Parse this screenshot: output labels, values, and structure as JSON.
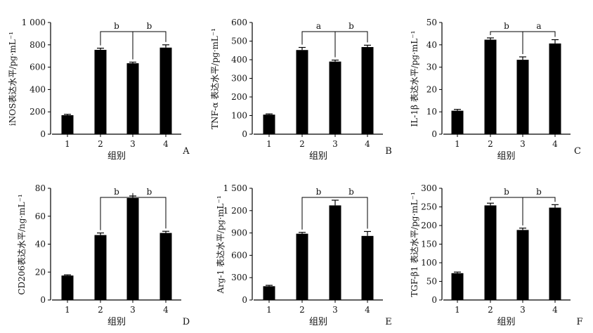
{
  "figure": {
    "colors": {
      "bar": "#000000",
      "axis": "#000000",
      "background": "#ffffff"
    }
  },
  "chart_data": [
    {
      "type": "bar",
      "panel_label": "A",
      "categories": [
        "1",
        "2",
        "3",
        "4"
      ],
      "values": [
        170,
        755,
        635,
        775
      ],
      "errors": [
        8,
        15,
        10,
        25
      ],
      "xlabel": "组别",
      "ylabel": "iNOS表达水平/pg·mL⁻¹",
      "ylim": [
        0,
        1000
      ],
      "yticks": [
        0,
        200,
        400,
        600,
        800,
        1000
      ],
      "ytick_labels": [
        "0",
        "200",
        "400",
        "600",
        "800",
        "1 000"
      ],
      "legend": "none",
      "grid": false,
      "significance": [
        {
          "from": "2",
          "to": "3",
          "label": "b"
        },
        {
          "from": "3",
          "to": "4",
          "label": "b"
        }
      ]
    },
    {
      "type": "bar",
      "panel_label": "B",
      "categories": [
        "1",
        "2",
        "3",
        "4"
      ],
      "values": [
        105,
        452,
        390,
        468
      ],
      "errors": [
        4,
        14,
        8,
        10
      ],
      "xlabel": "组别",
      "ylabel": "TNF-α 表达水平/pg·mL⁻¹",
      "ylim": [
        0,
        600
      ],
      "yticks": [
        0,
        100,
        200,
        300,
        400,
        500,
        600
      ],
      "ytick_labels": [
        "0",
        "100",
        "200",
        "300",
        "400",
        "500",
        "600"
      ],
      "legend": "none",
      "grid": false,
      "significance": [
        {
          "from": "2",
          "to": "3",
          "label": "a"
        },
        {
          "from": "3",
          "to": "4",
          "label": "b"
        }
      ]
    },
    {
      "type": "bar",
      "panel_label": "C",
      "categories": [
        "1",
        "2",
        "3",
        "4"
      ],
      "values": [
        10.5,
        42.3,
        33.3,
        40.6
      ],
      "errors": [
        0.6,
        0.8,
        1.3,
        1.7
      ],
      "xlabel": "组别",
      "ylabel": "IL-1β 表达水平/pg·mL⁻¹",
      "ylim": [
        0,
        50
      ],
      "yticks": [
        0,
        10,
        20,
        30,
        40,
        50
      ],
      "ytick_labels": [
        "0",
        "10",
        "20",
        "30",
        "40",
        "50"
      ],
      "legend": "none",
      "grid": false,
      "significance": [
        {
          "from": "2",
          "to": "3",
          "label": "b"
        },
        {
          "from": "3",
          "to": "4",
          "label": "a"
        }
      ]
    },
    {
      "type": "bar",
      "panel_label": "D",
      "categories": [
        "1",
        "2",
        "3",
        "4"
      ],
      "values": [
        17.5,
        46.5,
        73,
        48
      ],
      "errors": [
        0.5,
        1.5,
        1.5,
        1.2
      ],
      "xlabel": "组别",
      "ylabel": "CD206表达水平/ng·mL⁻¹",
      "ylim": [
        0,
        80
      ],
      "yticks": [
        0,
        20,
        40,
        60,
        80
      ],
      "ytick_labels": [
        "0",
        "20",
        "40",
        "60",
        "80"
      ],
      "legend": "none",
      "grid": false,
      "significance": [
        {
          "from": "2",
          "to": "3",
          "label": "b"
        },
        {
          "from": "3",
          "to": "4",
          "label": "b"
        }
      ]
    },
    {
      "type": "bar",
      "panel_label": "E",
      "categories": [
        "1",
        "2",
        "3",
        "4"
      ],
      "values": [
        185,
        890,
        1270,
        860
      ],
      "errors": [
        12,
        18,
        70,
        60
      ],
      "xlabel": "组别",
      "ylabel": "Arg-1 表达水平/pg·mL⁻¹",
      "ylim": [
        0,
        1500
      ],
      "yticks": [
        0,
        300,
        600,
        900,
        1200,
        1500
      ],
      "ytick_labels": [
        "0",
        "300",
        "600",
        "900",
        "1 200",
        "1 500"
      ],
      "legend": "none",
      "grid": false,
      "significance": [
        {
          "from": "2",
          "to": "3",
          "label": "b"
        },
        {
          "from": "3",
          "to": "4",
          "label": "b"
        }
      ]
    },
    {
      "type": "bar",
      "panel_label": "F",
      "categories": [
        "1",
        "2",
        "3",
        "4"
      ],
      "values": [
        72,
        254,
        188,
        248
      ],
      "errors": [
        3,
        6,
        5,
        8
      ],
      "xlabel": "组别",
      "ylabel": "TGF-β1 表达水平/pg·mL⁻¹",
      "ylim": [
        0,
        300
      ],
      "yticks": [
        0,
        50,
        100,
        150,
        200,
        250,
        300
      ],
      "ytick_labels": [
        "0",
        "50",
        "100",
        "150",
        "200",
        "250",
        "300"
      ],
      "legend": "none",
      "grid": false,
      "significance": [
        {
          "from": "2",
          "to": "3",
          "label": "b"
        },
        {
          "from": "3",
          "to": "4",
          "label": "b"
        }
      ]
    }
  ]
}
